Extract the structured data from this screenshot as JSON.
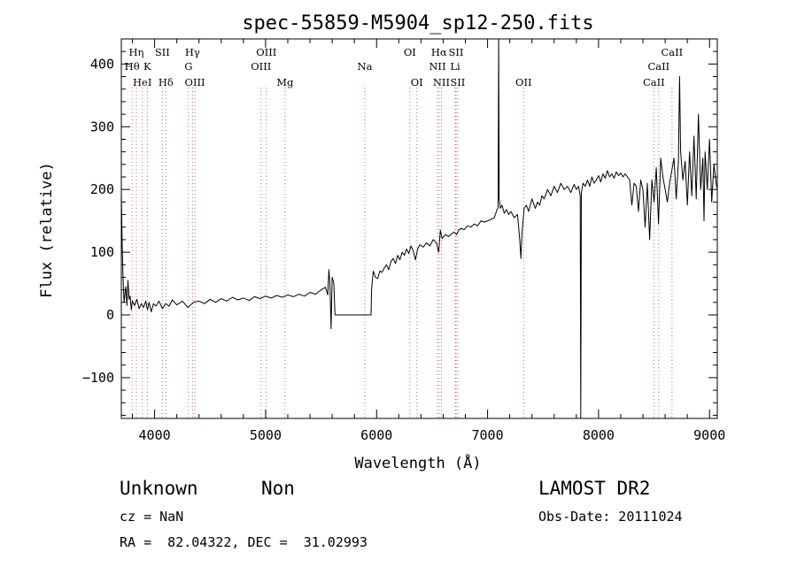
{
  "chart_data": {
    "type": "line",
    "title": "spec-55859-M5904_sp12-250.fits",
    "xlabel": "Wavelength (Å)",
    "ylabel": "Flux (relative)",
    "xlim": [
      3700,
      9070
    ],
    "ylim": [
      -165,
      440
    ],
    "xticks": [
      4000,
      5000,
      6000,
      7000,
      8000,
      9000
    ],
    "yticks": [
      -100,
      0,
      100,
      200,
      300,
      400
    ],
    "grid": false,
    "series": [
      {
        "points": [
          [
            3700,
            195
          ],
          [
            3708,
            110
          ],
          [
            3715,
            60
          ],
          [
            3725,
            20
          ],
          [
            3740,
            45
          ],
          [
            3750,
            15
          ],
          [
            3760,
            55
          ],
          [
            3770,
            25
          ],
          [
            3780,
            30
          ],
          [
            3790,
            8
          ],
          [
            3800,
            22
          ],
          [
            3820,
            15
          ],
          [
            3840,
            25
          ],
          [
            3860,
            10
          ],
          [
            3880,
            18
          ],
          [
            3900,
            12
          ],
          [
            3920,
            22
          ],
          [
            3935,
            8
          ],
          [
            3950,
            20
          ],
          [
            3970,
            5
          ],
          [
            3990,
            18
          ],
          [
            4010,
            14
          ],
          [
            4040,
            22
          ],
          [
            4070,
            10
          ],
          [
            4100,
            18
          ],
          [
            4130,
            14
          ],
          [
            4160,
            24
          ],
          [
            4200,
            16
          ],
          [
            4250,
            22
          ],
          [
            4300,
            12
          ],
          [
            4350,
            20
          ],
          [
            4400,
            22
          ],
          [
            4450,
            18
          ],
          [
            4500,
            25
          ],
          [
            4550,
            20
          ],
          [
            4600,
            26
          ],
          [
            4650,
            22
          ],
          [
            4700,
            28
          ],
          [
            4750,
            24
          ],
          [
            4800,
            27
          ],
          [
            4850,
            23
          ],
          [
            4900,
            29
          ],
          [
            4950,
            26
          ],
          [
            5000,
            30
          ],
          [
            5050,
            27
          ],
          [
            5100,
            31
          ],
          [
            5150,
            28
          ],
          [
            5200,
            32
          ],
          [
            5250,
            29
          ],
          [
            5300,
            33
          ],
          [
            5350,
            30
          ],
          [
            5400,
            36
          ],
          [
            5450,
            33
          ],
          [
            5500,
            40
          ],
          [
            5540,
            44
          ],
          [
            5560,
            32
          ],
          [
            5570,
            72
          ],
          [
            5580,
            48
          ],
          [
            5590,
            -22
          ],
          [
            5600,
            60
          ],
          [
            5615,
            50
          ],
          [
            5625,
            0
          ],
          [
            5950,
            0
          ],
          [
            5955,
            40
          ],
          [
            5970,
            70
          ],
          [
            5990,
            60
          ],
          [
            6010,
            58
          ],
          [
            6030,
            70
          ],
          [
            6050,
            68
          ],
          [
            6070,
            75
          ],
          [
            6090,
            80
          ],
          [
            6110,
            72
          ],
          [
            6130,
            85
          ],
          [
            6150,
            90
          ],
          [
            6170,
            82
          ],
          [
            6190,
            95
          ],
          [
            6210,
            88
          ],
          [
            6230,
            100
          ],
          [
            6250,
            95
          ],
          [
            6270,
            105
          ],
          [
            6290,
            98
          ],
          [
            6310,
            110
          ],
          [
            6330,
            102
          ],
          [
            6350,
            88
          ],
          [
            6370,
            105
          ],
          [
            6390,
            112
          ],
          [
            6420,
            108
          ],
          [
            6450,
            115
          ],
          [
            6480,
            110
          ],
          [
            6510,
            120
          ],
          [
            6540,
            115
          ],
          [
            6560,
            100
          ],
          [
            6575,
            135
          ],
          [
            6590,
            122
          ],
          [
            6620,
            128
          ],
          [
            6650,
            125
          ],
          [
            6680,
            130
          ],
          [
            6700,
            132
          ],
          [
            6720,
            128
          ],
          [
            6740,
            135
          ],
          [
            6760,
            138
          ],
          [
            6790,
            136
          ],
          [
            6820,
            142
          ],
          [
            6850,
            140
          ],
          [
            6880,
            145
          ],
          [
            6910,
            142
          ],
          [
            6940,
            150
          ],
          [
            6970,
            148
          ],
          [
            7000,
            150
          ],
          [
            7030,
            152
          ],
          [
            7060,
            155
          ],
          [
            7080,
            165
          ],
          [
            7095,
            172
          ],
          [
            7100,
            440
          ],
          [
            7105,
            185
          ],
          [
            7115,
            170
          ],
          [
            7130,
            175
          ],
          [
            7150,
            162
          ],
          [
            7170,
            168
          ],
          [
            7190,
            160
          ],
          [
            7210,
            165
          ],
          [
            7240,
            155
          ],
          [
            7270,
            160
          ],
          [
            7290,
            120
          ],
          [
            7300,
            90
          ],
          [
            7310,
            130
          ],
          [
            7330,
            170
          ],
          [
            7350,
            175
          ],
          [
            7370,
            165
          ],
          [
            7400,
            185
          ],
          [
            7430,
            170
          ],
          [
            7450,
            180
          ],
          [
            7470,
            175
          ],
          [
            7490,
            190
          ],
          [
            7510,
            185
          ],
          [
            7540,
            200
          ],
          [
            7570,
            190
          ],
          [
            7600,
            205
          ],
          [
            7630,
            195
          ],
          [
            7660,
            210
          ],
          [
            7690,
            200
          ],
          [
            7720,
            205
          ],
          [
            7750,
            195
          ],
          [
            7780,
            208
          ],
          [
            7800,
            200
          ],
          [
            7820,
            205
          ],
          [
            7835,
            190
          ],
          [
            7840,
            -165
          ],
          [
            7845,
            195
          ],
          [
            7860,
            210
          ],
          [
            7880,
            205
          ],
          [
            7900,
            215
          ],
          [
            7920,
            205
          ],
          [
            7940,
            220
          ],
          [
            7960,
            210
          ],
          [
            7980,
            215
          ],
          [
            8000,
            222
          ],
          [
            8020,
            212
          ],
          [
            8040,
            225
          ],
          [
            8060,
            218
          ],
          [
            8080,
            230
          ],
          [
            8100,
            220
          ],
          [
            8120,
            225
          ],
          [
            8140,
            218
          ],
          [
            8160,
            228
          ],
          [
            8180,
            222
          ],
          [
            8200,
            226
          ],
          [
            8220,
            220
          ],
          [
            8240,
            225
          ],
          [
            8260,
            220
          ],
          [
            8280,
            215
          ],
          [
            8300,
            175
          ],
          [
            8320,
            210
          ],
          [
            8340,
            205
          ],
          [
            8360,
            165
          ],
          [
            8380,
            215
          ],
          [
            8400,
            200
          ],
          [
            8420,
            140
          ],
          [
            8440,
            210
          ],
          [
            8460,
            120
          ],
          [
            8480,
            215
          ],
          [
            8500,
            180
          ],
          [
            8520,
            235
          ],
          [
            8540,
            145
          ],
          [
            8560,
            250
          ],
          [
            8580,
            220
          ],
          [
            8600,
            200
          ],
          [
            8620,
            180
          ],
          [
            8640,
            210
          ],
          [
            8660,
            230
          ],
          [
            8680,
            250
          ],
          [
            8700,
            185
          ],
          [
            8720,
            245
          ],
          [
            8730,
            380
          ],
          [
            8740,
            260
          ],
          [
            8760,
            215
          ],
          [
            8780,
            245
          ],
          [
            8800,
            175
          ],
          [
            8820,
            260
          ],
          [
            8840,
            190
          ],
          [
            8860,
            285
          ],
          [
            8880,
            185
          ],
          [
            8900,
            320
          ],
          [
            8920,
            200
          ],
          [
            8940,
            250
          ],
          [
            8950,
            150
          ],
          [
            8960,
            260
          ],
          [
            8980,
            200
          ],
          [
            9000,
            280
          ],
          [
            9020,
            180
          ],
          [
            9040,
            240
          ],
          [
            9060,
            210
          ],
          [
            9070,
            200
          ]
        ]
      }
    ],
    "line_markers": [
      {
        "label": "Hη",
        "x": 3835,
        "row": 1
      },
      {
        "label": "Hθ",
        "x": 3797,
        "row": 2
      },
      {
        "label": "HeI",
        "x": 3889,
        "row": 3
      },
      {
        "label": "SII",
        "x": 4070,
        "row": 1
      },
      {
        "label": "K",
        "x": 3934,
        "row": 2
      },
      {
        "label": "Hδ",
        "x": 4102,
        "row": 3
      },
      {
        "label": "Hγ",
        "x": 4341,
        "row": 1
      },
      {
        "label": "G",
        "x": 4305,
        "row": 2
      },
      {
        "label": "OIII",
        "x": 4363,
        "row": 3
      },
      {
        "label": "OIII",
        "x": 5007,
        "row": 1
      },
      {
        "label": "OIII",
        "x": 4959,
        "row": 2
      },
      {
        "label": "Mg",
        "x": 5175,
        "row": 3
      },
      {
        "label": "Na",
        "x": 5894,
        "row": 2
      },
      {
        "label": "OI",
        "x": 6300,
        "row": 1
      },
      {
        "label": "OI",
        "x": 6363,
        "row": 3
      },
      {
        "label": "Hα",
        "x": 6563,
        "row": 1
      },
      {
        "label": "SII",
        "x": 6716,
        "row": 1
      },
      {
        "label": "NII",
        "x": 6548,
        "row": 2
      },
      {
        "label": "Li",
        "x": 6708,
        "row": 2
      },
      {
        "label": "NII",
        "x": 6584,
        "row": 3
      },
      {
        "label": "SII",
        "x": 6731,
        "row": 3
      },
      {
        "label": "OII",
        "x": 7325,
        "row": 3
      },
      {
        "label": "CaII",
        "x": 8662,
        "row": 1
      },
      {
        "label": "CaII",
        "x": 8542,
        "row": 2
      },
      {
        "label": "CaII",
        "x": 8498,
        "row": 3
      }
    ],
    "dotted_line_color": "#cc6666"
  },
  "info": {
    "class_label": "Unknown",
    "subclass_label": "Non",
    "survey": "LAMOST DR2",
    "cz": "cz = NaN",
    "obs_date": "Obs-Date: 20111024",
    "coords": "RA =  82.04322, DEC =  31.02993"
  }
}
